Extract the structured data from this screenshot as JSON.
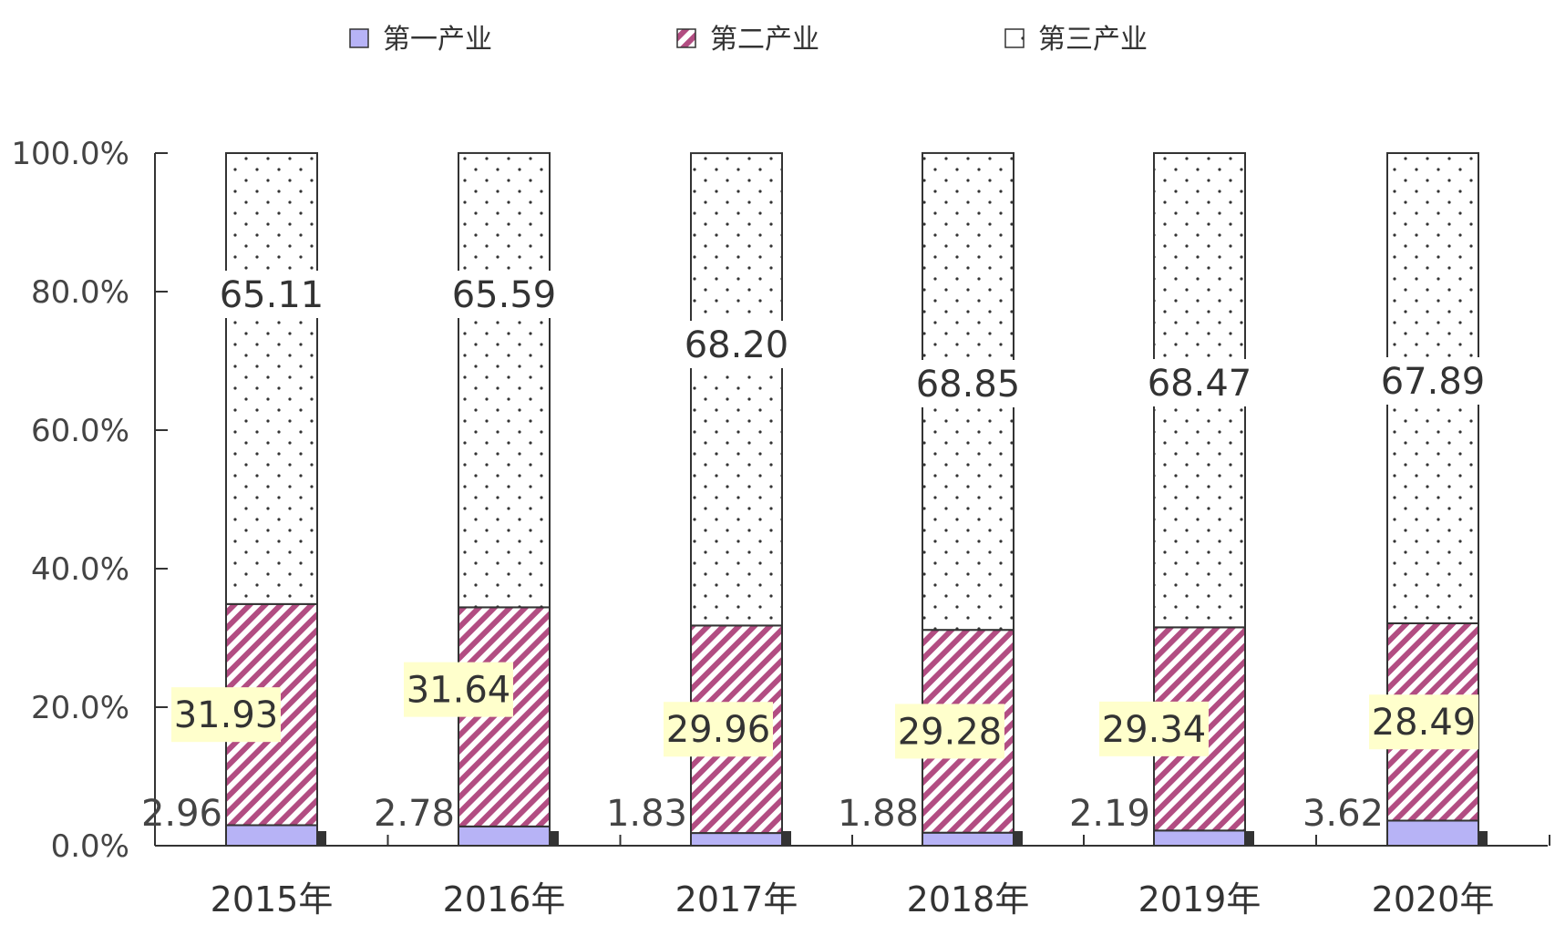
{
  "colors": {
    "primary": "#b7b3f6",
    "secondary": "#b24d82",
    "tertiary_dot": "#333333",
    "label_bg": "#ffffcc",
    "axis": "#333333"
  },
  "chart_data": {
    "type": "bar",
    "stacked": true,
    "categories": [
      "2015年",
      "2016年",
      "2017年",
      "2018年",
      "2019年",
      "2020年"
    ],
    "series": [
      {
        "name": "第一产业",
        "values": [
          2.96,
          2.78,
          1.83,
          1.88,
          2.19,
          3.62
        ]
      },
      {
        "name": "第二产业",
        "values": [
          31.93,
          31.64,
          29.96,
          29.28,
          29.34,
          28.49
        ]
      },
      {
        "name": "第三产业",
        "values": [
          65.11,
          65.59,
          68.2,
          68.85,
          68.47,
          67.89
        ]
      }
    ],
    "y_ticks": [
      "0.0%",
      "20.0%",
      "40.0%",
      "60.0%",
      "80.0%",
      "100.0%"
    ],
    "ylim": [
      0,
      100
    ],
    "legend_position": "top",
    "grid": false
  }
}
